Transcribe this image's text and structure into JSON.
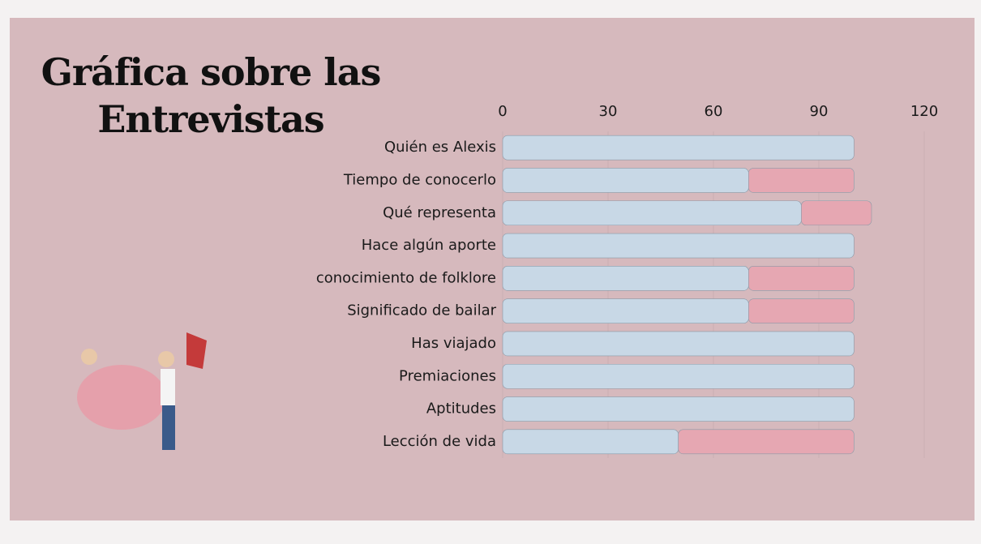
{
  "chart_data": {
    "type": "stacked-barh",
    "title": "Gráfica sobre las Entrevistas",
    "categories": [
      "Quién es Alexis",
      "Tiempo de conocerlo",
      "Qué representa",
      "Hace algún aporte",
      "conocimiento de folklore",
      "Significado de bailar",
      "Has viajado",
      "Premiaciones",
      "Aptitudes",
      "Lección de vida"
    ],
    "series": [
      {
        "color": "#c8d8e6",
        "values": [
          100,
          70,
          85,
          100,
          70,
          70,
          100,
          100,
          100,
          50
        ]
      },
      {
        "color": "#e6a7b2",
        "values": [
          0,
          30,
          20,
          0,
          30,
          30,
          0,
          0,
          0,
          50
        ]
      }
    ],
    "xlim": [
      0,
      120
    ],
    "xticks": [
      0,
      30,
      60,
      90,
      120
    ],
    "grid": true
  }
}
